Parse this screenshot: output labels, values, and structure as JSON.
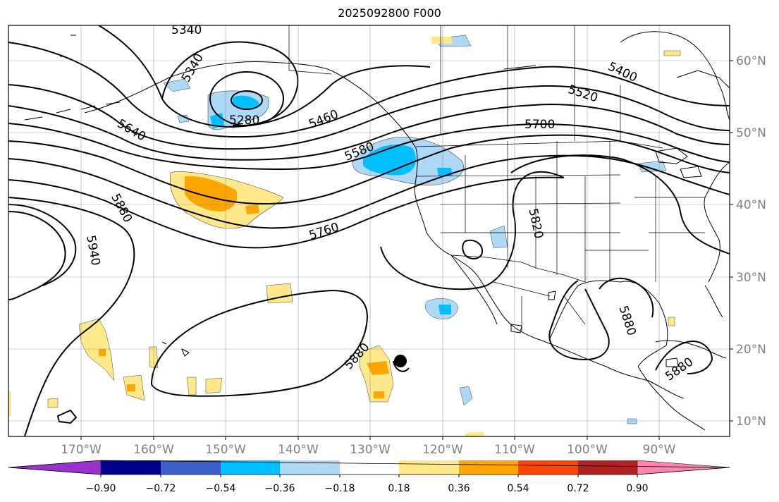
{
  "title": "2025092800 F000",
  "lon_labels": [
    "170°W",
    "160°W",
    "150°W",
    "140°W",
    "130°W",
    "120°W",
    "110°W",
    "100°W",
    "90°W"
  ],
  "lat_labels": [
    "60°N",
    "50°N",
    "40°N",
    "30°N",
    "20°N",
    "10°N"
  ],
  "contour_labels": {
    "c5340": "5340",
    "c5280": "5280",
    "c5460": "5460",
    "c5580": "5580",
    "c5640": "5640",
    "c5400": "5400",
    "c5520": "5520",
    "c5700": "5700",
    "c5880_w": "5880",
    "c5940": "5940",
    "c5760": "5760",
    "c5820": "5820",
    "c5880_s": "5880",
    "c5880_e": "5880",
    "c5880_se": "5880",
    "c5340_w": "5340"
  },
  "colorbar": {
    "ticks": [
      "−0.90",
      "−0.72",
      "−0.54",
      "−0.36",
      "−0.18",
      "0.18",
      "0.36",
      "0.54",
      "0.72",
      "0.90"
    ],
    "colors": [
      "#9932cc",
      "#00008b",
      "#3a5fcd",
      "#00bfff",
      "#add8f6",
      "#ffffff",
      "#ffe88a",
      "#ffa500",
      "#ff4500",
      "#b22222",
      "#ff85b0"
    ]
  }
}
